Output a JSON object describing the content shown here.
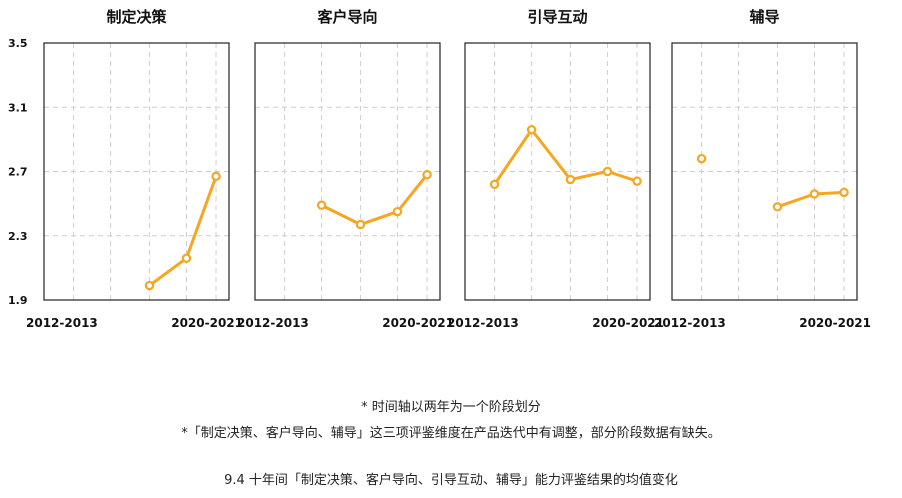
{
  "chart_data": {
    "type": "line",
    "y_ticks": [
      "3.5",
      "3.1",
      "2.7",
      "2.3",
      "1.9"
    ],
    "ylim": [
      1.9,
      3.5
    ],
    "x_periods": 5,
    "x_tick_labels": {
      "first": "2012-2013",
      "last": "2020-2021"
    },
    "grid": true,
    "color": "#F5A623",
    "panels": [
      {
        "title": "制定决策",
        "values": [
          null,
          null,
          1.99,
          2.16,
          2.67
        ]
      },
      {
        "title": "客户导向",
        "values": [
          null,
          2.49,
          2.37,
          2.45,
          2.68
        ]
      },
      {
        "title": "引导互动",
        "values": [
          2.62,
          2.96,
          2.65,
          2.7,
          2.64
        ]
      },
      {
        "title": "辅导",
        "values": [
          2.78,
          null,
          2.48,
          2.56,
          2.57
        ]
      }
    ]
  },
  "notes": [
    "* 时间轴以两年为一个阶段划分",
    "*「制定决策、客户导向、辅导」这三项评鉴维度在产品迭代中有调整，部分阶段数据有缺失。"
  ],
  "caption": "9.4 十年间「制定决策、客户导向、引导互动、辅导」能力评鉴结果的均值变化"
}
